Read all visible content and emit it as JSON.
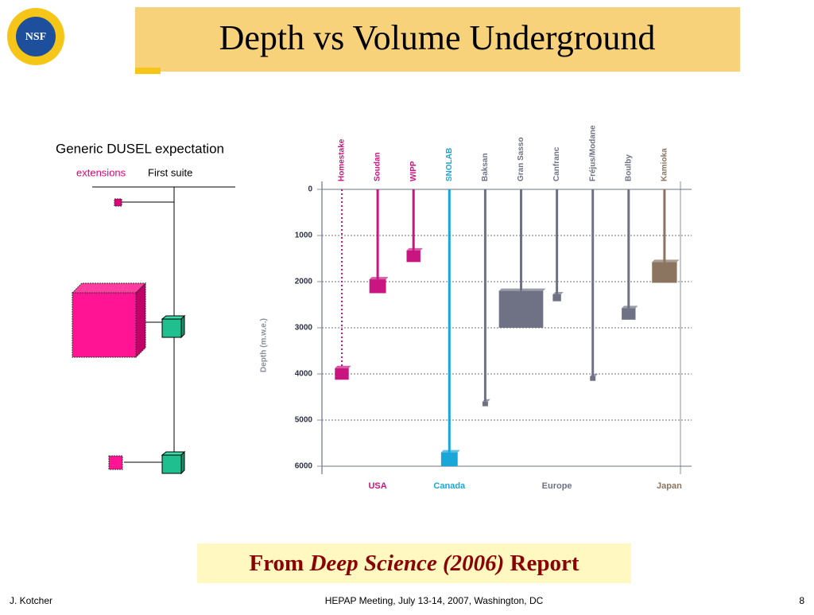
{
  "logo": "NSF",
  "title": "Depth vs Volume Underground",
  "diagram": {
    "heading": "Generic DUSEL expectation",
    "extensions": "extensions",
    "first_suite": "First suite"
  },
  "chart_data": {
    "type": "depth",
    "categories": [
      "Homestake",
      "Soudan",
      "WIPP",
      "SNOLAB",
      "Baksan",
      "Gran Sasso",
      "Canfranc",
      "Fréjus/Modane",
      "Boulby",
      "Kamioka"
    ],
    "values": [
      4000,
      2100,
      1450,
      5850,
      4650,
      2600,
      2350,
      4100,
      2700,
      1800
    ],
    "sizes": [
      250,
      300,
      250,
      300,
      100,
      800,
      150,
      100,
      250,
      450
    ],
    "colors": [
      "#c8157f",
      "#c8157f",
      "#c8157f",
      "#1aa7d8",
      "#6e7284",
      "#6e7284",
      "#6e7284",
      "#6e7284",
      "#6e7284",
      "#8b7560"
    ],
    "styles": [
      "dotted",
      "solid",
      "solid",
      "solid",
      "solid",
      "solid",
      "solid",
      "solid",
      "solid",
      "solid"
    ],
    "groups": [
      {
        "name": "USA",
        "color": "#c8157f",
        "size": 3
      },
      {
        "name": "Canada",
        "color": "#1aa7d8",
        "size": 1
      },
      {
        "name": "Europe",
        "color": "#6e7284",
        "size": 5
      },
      {
        "name": "Japan",
        "color": "#8b7560",
        "size": 1
      }
    ],
    "y_label": "Depth (m.w.e.)",
    "ylim": [
      0,
      6000
    ],
    "yticks": [
      0,
      1000,
      2000,
      3000,
      4000,
      5000,
      6000
    ],
    "grid": true
  },
  "banner": {
    "from": "From",
    "source": "Deep Science (2006)",
    "report": "Report"
  },
  "footer": {
    "author": "J. Kotcher",
    "meeting": "HEPAP Meeting, July 13-14, 2007, Washington, DC",
    "page": "8"
  }
}
